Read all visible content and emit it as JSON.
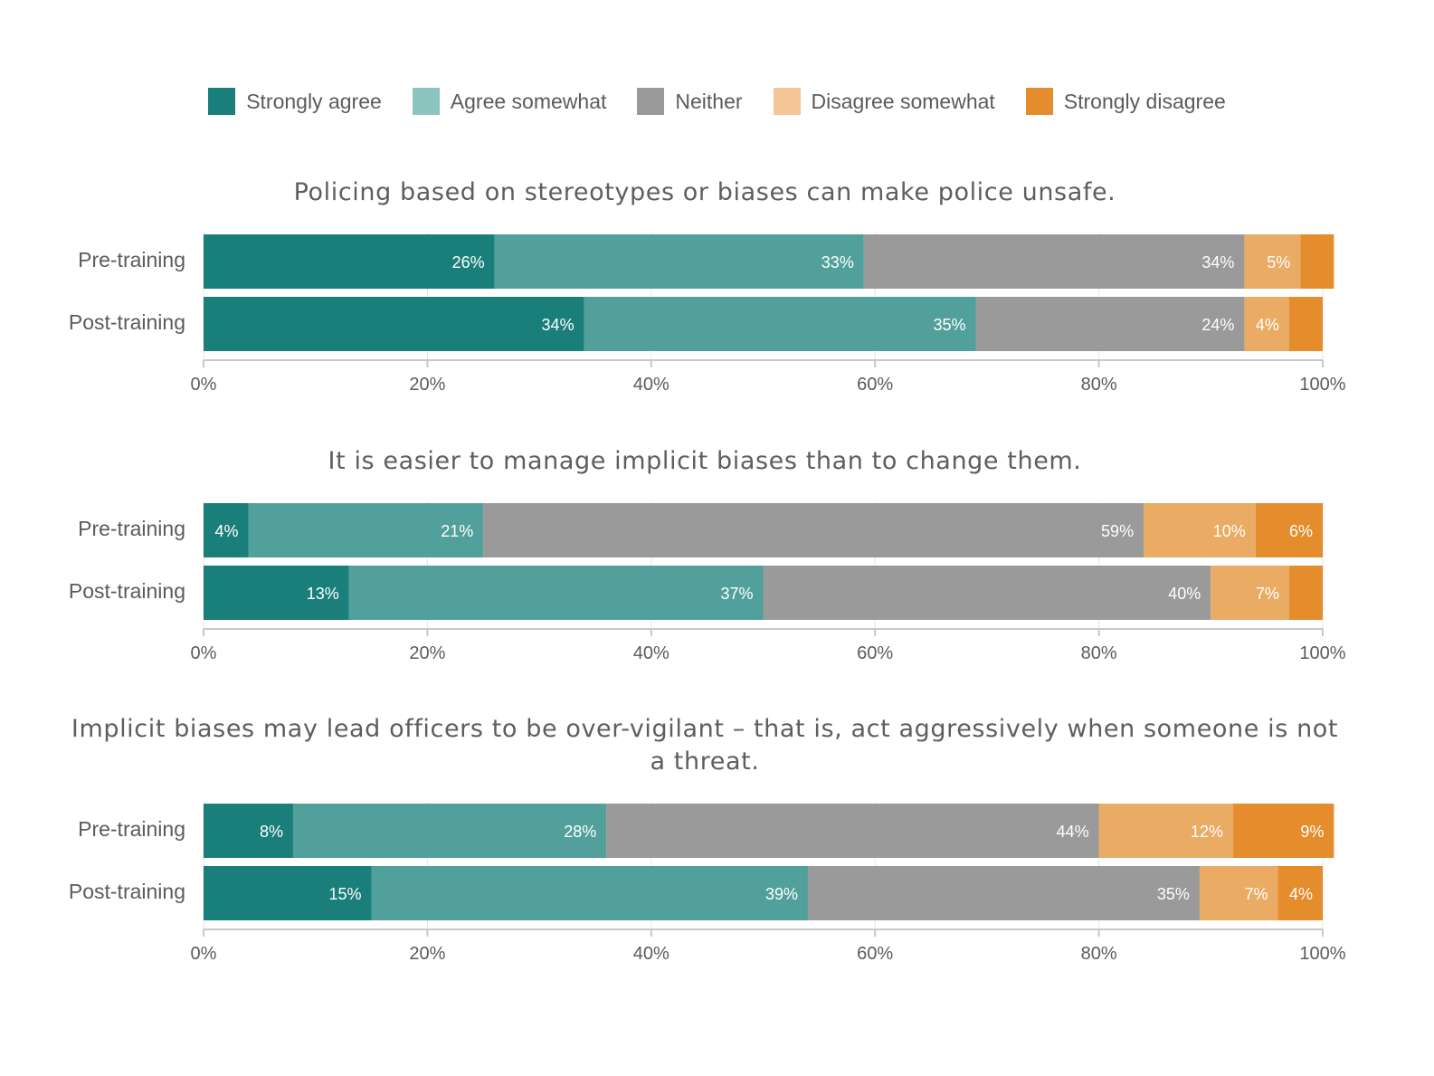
{
  "legend": [
    {
      "label": "Strongly agree",
      "color": "#1a7f7a"
    },
    {
      "label": "Agree somewhat",
      "color": "#8cc4c0"
    },
    {
      "label": "Neither",
      "color": "#9a9a9a"
    },
    {
      "label": "Disagree somewhat",
      "color": "#f5c595"
    },
    {
      "label": "Strongly disagree",
      "color": "#e58c2d"
    }
  ],
  "chart_data": [
    {
      "type": "bar",
      "orientation": "horizontal",
      "stacked": true,
      "title": "Policing based on stereotypes or biases can make police unsafe.",
      "categories": [
        "Pre-training",
        "Post-training"
      ],
      "xlim": [
        0,
        100
      ],
      "xticks": [
        "0%",
        "20%",
        "40%",
        "60%",
        "80%",
        "100%"
      ],
      "series": [
        {
          "name": "Strongly agree",
          "values": [
            26,
            34
          ],
          "labels": [
            "26%",
            "34%"
          ]
        },
        {
          "name": "Agree somewhat",
          "values": [
            33,
            35
          ],
          "labels": [
            "33%",
            "35%"
          ]
        },
        {
          "name": "Neither",
          "values": [
            34,
            24
          ],
          "labels": [
            "34%",
            "24%"
          ]
        },
        {
          "name": "Disagree somewhat",
          "values": [
            5,
            4
          ],
          "labels": [
            "5%",
            "4%"
          ]
        },
        {
          "name": "Strongly disagree",
          "values": [
            3,
            3
          ],
          "labels": [
            "",
            ""
          ]
        }
      ]
    },
    {
      "type": "bar",
      "orientation": "horizontal",
      "stacked": true,
      "title": "It is easier to manage implicit biases than to change them.",
      "categories": [
        "Pre-training",
        "Post-training"
      ],
      "xlim": [
        0,
        100
      ],
      "xticks": [
        "0%",
        "20%",
        "40%",
        "60%",
        "80%",
        "100%"
      ],
      "series": [
        {
          "name": "Strongly agree",
          "values": [
            4,
            13
          ],
          "labels": [
            "4%",
            "13%"
          ]
        },
        {
          "name": "Agree somewhat",
          "values": [
            21,
            37
          ],
          "labels": [
            "21%",
            "37%"
          ]
        },
        {
          "name": "Neither",
          "values": [
            59,
            40
          ],
          "labels": [
            "59%",
            "40%"
          ]
        },
        {
          "name": "Disagree somewhat",
          "values": [
            10,
            7
          ],
          "labels": [
            "10%",
            "7%"
          ]
        },
        {
          "name": "Strongly disagree",
          "values": [
            6,
            3
          ],
          "labels": [
            "6%",
            ""
          ]
        }
      ]
    },
    {
      "type": "bar",
      "orientation": "horizontal",
      "stacked": true,
      "title": "Implicit biases may lead officers to be over-vigilant – that is, act aggressively when someone is not a threat.",
      "title_lines": [
        "Implicit biases may lead officers to be over-vigilant – that is, act aggressively when someone is not",
        "a threat."
      ],
      "categories": [
        "Pre-training",
        "Post-training"
      ],
      "xlim": [
        0,
        100
      ],
      "xticks": [
        "0%",
        "20%",
        "40%",
        "60%",
        "80%",
        "100%"
      ],
      "series": [
        {
          "name": "Strongly agree",
          "values": [
            8,
            15
          ],
          "labels": [
            "8%",
            "15%"
          ]
        },
        {
          "name": "Agree somewhat",
          "values": [
            28,
            39
          ],
          "labels": [
            "28%",
            "39%"
          ]
        },
        {
          "name": "Neither",
          "values": [
            44,
            35
          ],
          "labels": [
            "44%",
            "35%"
          ]
        },
        {
          "name": "Disagree somewhat",
          "values": [
            12,
            7
          ],
          "labels": [
            "12%",
            "7%"
          ]
        },
        {
          "name": "Strongly disagree",
          "values": [
            9,
            4
          ],
          "labels": [
            "9%",
            "4%"
          ]
        }
      ]
    }
  ],
  "bar_colors": [
    "#1a7f7a",
    "#52a09c",
    "#9a9a9a",
    "#eaab64",
    "#e58c2d"
  ],
  "axis_color": "#c8c8cc",
  "grid_color": "#e6e6e6"
}
